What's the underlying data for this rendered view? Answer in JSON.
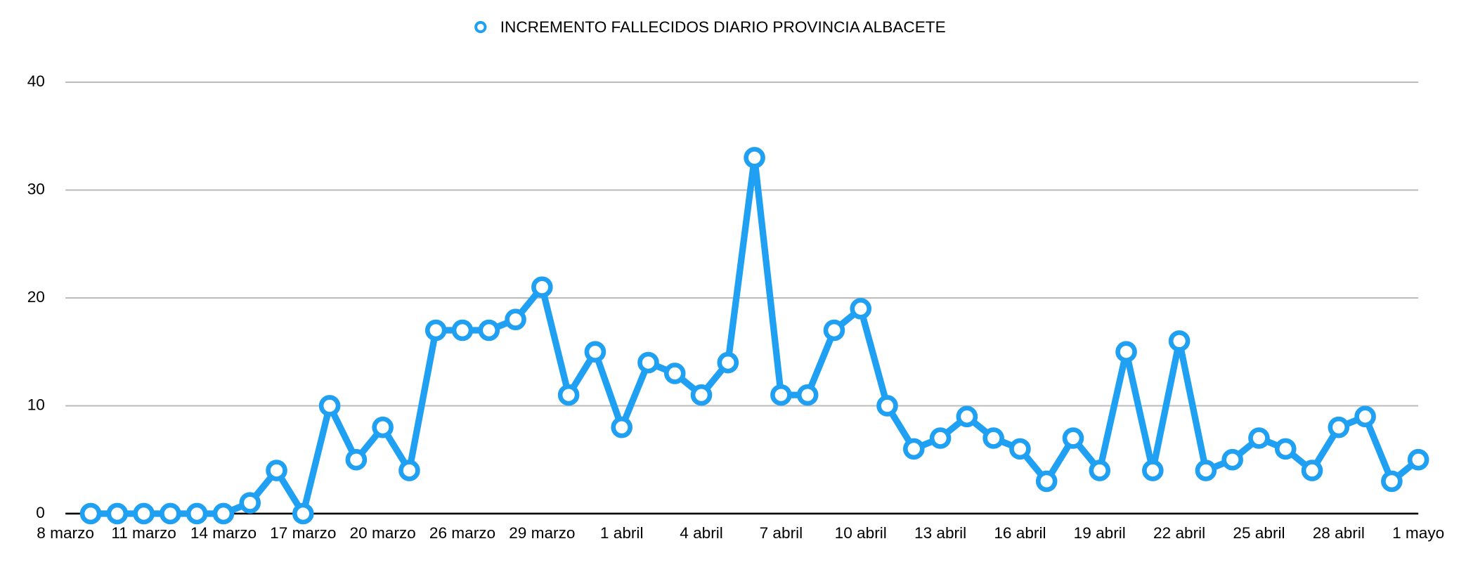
{
  "chart_data": {
    "type": "line",
    "categories": [
      "8 marzo",
      null,
      "11 marzo",
      null,
      null,
      "14 marzo",
      null,
      null,
      "17 marzo",
      null,
      null,
      "20 marzo",
      null,
      null,
      "26 marzo",
      null,
      null,
      "29 marzo",
      null,
      null,
      "1 abril",
      null,
      null,
      "4 abril",
      null,
      null,
      "7 abril",
      null,
      null,
      "10 abril",
      null,
      null,
      "13 abril",
      null,
      null,
      "16 abril",
      null,
      null,
      "19 abril",
      null,
      null,
      "22 abril",
      null,
      null,
      "25 abril",
      null,
      null,
      "28 abril",
      null,
      null,
      "1 mayo"
    ],
    "series": [
      {
        "name": "INCREMENTO FALLECIDOS DIARIO PROVINCIA ALBACETE",
        "color": "#1fa0f2",
        "values": [
          0,
          0,
          0,
          0,
          0,
          0,
          1,
          4,
          0,
          10,
          5,
          8,
          4,
          17,
          17,
          17,
          18,
          21,
          11,
          15,
          8,
          14,
          13,
          11,
          14,
          33,
          11,
          11,
          17,
          19,
          10,
          6,
          7,
          9,
          7,
          6,
          3,
          7,
          4,
          15,
          4,
          16,
          4,
          5,
          7,
          6,
          4,
          8,
          9,
          3,
          5
        ]
      }
    ],
    "ylim": [
      0,
      40
    ],
    "yticks": [
      0,
      10,
      20,
      30,
      40
    ],
    "grid": true
  }
}
